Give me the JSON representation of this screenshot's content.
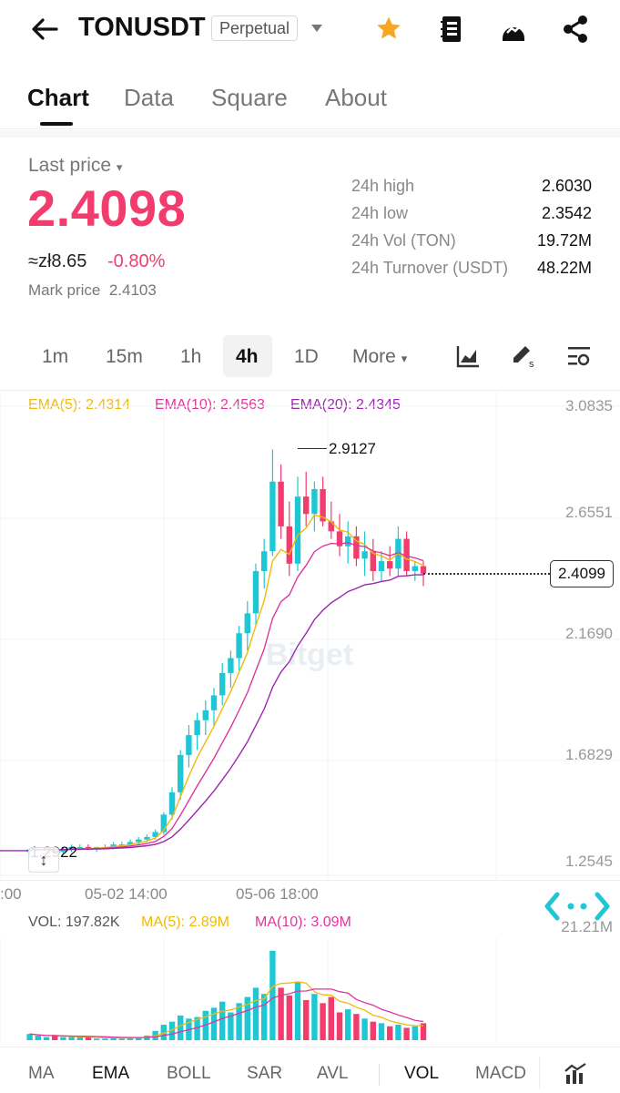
{
  "header": {
    "symbol": "TONUSDT",
    "tag": "Perpetual"
  },
  "tabs": [
    "Chart",
    "Data",
    "Square",
    "About"
  ],
  "price": {
    "label": "Last price",
    "value": "2.4098",
    "fiat": "≈zł8.65",
    "change": "-0.80%",
    "mark_label": "Mark price",
    "mark_value": "2.4103"
  },
  "stats": [
    {
      "label": "24h high",
      "value": "2.6030"
    },
    {
      "label": "24h low",
      "value": "2.3542"
    },
    {
      "label": "24h Vol (TON)",
      "value": "19.72M"
    },
    {
      "label": "24h Turnover (USDT)",
      "value": "48.22M"
    }
  ],
  "intervals": [
    "1m",
    "15m",
    "1h",
    "4h",
    "1D",
    "More"
  ],
  "ema": {
    "ema5": "EMA(5): 2.4314",
    "ema10": "EMA(10): 2.4563",
    "ema20": "EMA(20): 2.4345"
  },
  "y_labels": [
    "3.0835",
    "2.6551",
    "2.1690",
    "1.6829",
    "1.2545"
  ],
  "x_labels": [
    ":00",
    "05-02 14:00",
    "05-06 18:00"
  ],
  "high_marker": "2.9127",
  "low_marker": "1.2922",
  "current_price": "2.4099",
  "watermark": "Bitget",
  "volume": {
    "vol": "VOL: 197.82K",
    "ma5": "MA(5): 2.89M",
    "ma10": "MA(10): 3.09M",
    "axis": "21.21M"
  },
  "indicators": [
    "MA",
    "EMA",
    "BOLL",
    "SAR",
    "AVL",
    "VOL",
    "MACD"
  ],
  "colors": {
    "up": "#1fc7d4",
    "down": "#f23c6e",
    "ema5": "#f0b90b",
    "ema10": "#e0369c",
    "ema20": "#9c27b0",
    "star": "#f5a623"
  },
  "chart_data": {
    "type": "candlestick",
    "y_range": [
      1.2545,
      3.0835
    ],
    "ohlc": [
      [
        1.29,
        1.3,
        1.27,
        1.3
      ],
      [
        1.3,
        1.31,
        1.29,
        1.3
      ],
      [
        1.3,
        1.31,
        1.29,
        1.3
      ],
      [
        1.3,
        1.31,
        1.28,
        1.29
      ],
      [
        1.29,
        1.31,
        1.28,
        1.3
      ],
      [
        1.3,
        1.32,
        1.29,
        1.31
      ],
      [
        1.31,
        1.32,
        1.3,
        1.31
      ],
      [
        1.31,
        1.32,
        1.3,
        1.3
      ],
      [
        1.3,
        1.31,
        1.29,
        1.31
      ],
      [
        1.31,
        1.32,
        1.3,
        1.31
      ],
      [
        1.31,
        1.33,
        1.3,
        1.32
      ],
      [
        1.32,
        1.33,
        1.31,
        1.32
      ],
      [
        1.32,
        1.34,
        1.31,
        1.33
      ],
      [
        1.33,
        1.35,
        1.32,
        1.34
      ],
      [
        1.34,
        1.36,
        1.33,
        1.35
      ],
      [
        1.35,
        1.38,
        1.34,
        1.37
      ],
      [
        1.37,
        1.45,
        1.36,
        1.44
      ],
      [
        1.44,
        1.55,
        1.42,
        1.53
      ],
      [
        1.53,
        1.7,
        1.5,
        1.68
      ],
      [
        1.68,
        1.8,
        1.63,
        1.76
      ],
      [
        1.76,
        1.85,
        1.7,
        1.82
      ],
      [
        1.82,
        1.9,
        1.76,
        1.86
      ],
      [
        1.86,
        1.95,
        1.8,
        1.92
      ],
      [
        1.92,
        2.05,
        1.88,
        2.01
      ],
      [
        2.01,
        2.1,
        1.95,
        2.07
      ],
      [
        2.07,
        2.2,
        2.02,
        2.17
      ],
      [
        2.17,
        2.3,
        2.1,
        2.25
      ],
      [
        2.25,
        2.45,
        2.2,
        2.42
      ],
      [
        2.42,
        2.55,
        2.35,
        2.5
      ],
      [
        2.5,
        2.91,
        2.48,
        2.78
      ],
      [
        2.78,
        2.85,
        2.55,
        2.6
      ],
      [
        2.6,
        2.7,
        2.4,
        2.45
      ],
      [
        2.45,
        2.8,
        2.42,
        2.72
      ],
      [
        2.72,
        2.82,
        2.6,
        2.65
      ],
      [
        2.65,
        2.78,
        2.58,
        2.75
      ],
      [
        2.75,
        2.8,
        2.6,
        2.62
      ],
      [
        2.62,
        2.7,
        2.55,
        2.58
      ],
      [
        2.58,
        2.65,
        2.48,
        2.52
      ],
      [
        2.52,
        2.62,
        2.45,
        2.56
      ],
      [
        2.56,
        2.6,
        2.44,
        2.47
      ],
      [
        2.47,
        2.58,
        2.4,
        2.5
      ],
      [
        2.5,
        2.55,
        2.38,
        2.42
      ],
      [
        2.42,
        2.5,
        2.38,
        2.46
      ],
      [
        2.46,
        2.52,
        2.4,
        2.43
      ],
      [
        2.43,
        2.6,
        2.4,
        2.55
      ],
      [
        2.55,
        2.58,
        2.4,
        2.42
      ],
      [
        2.42,
        2.46,
        2.38,
        2.44
      ],
      [
        2.44,
        2.46,
        2.36,
        2.41
      ]
    ],
    "volume": [
      0.4,
      0.3,
      0.2,
      0.3,
      0.2,
      0.2,
      0.2,
      0.2,
      0.1,
      0.1,
      0.2,
      0.1,
      0.2,
      0.2,
      0.3,
      0.6,
      1.0,
      1.2,
      1.6,
      1.4,
      1.5,
      1.9,
      2.1,
      2.5,
      1.8,
      2.4,
      2.8,
      3.4,
      3.0,
      5.8,
      3.4,
      2.9,
      3.8,
      2.6,
      3.0,
      2.4,
      2.8,
      1.8,
      2.0,
      1.7,
      1.4,
      1.2,
      1.1,
      0.9,
      1.0,
      0.8,
      0.9,
      1.1
    ]
  }
}
